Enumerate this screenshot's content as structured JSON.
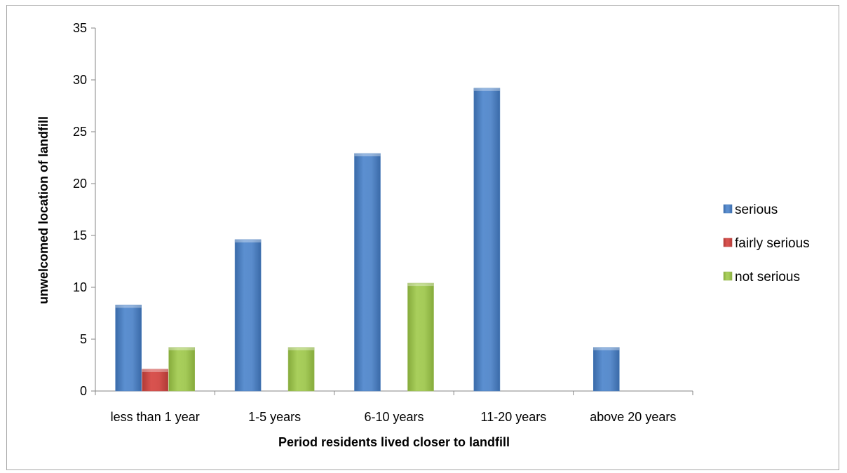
{
  "chart_data": {
    "type": "bar",
    "title": "",
    "xlabel": "Period residents lived closer to landfill",
    "ylabel": "unwelcomed location of landfill",
    "categories": [
      "less than 1 year",
      "1-5 years",
      "6-10 years",
      "11-20 years",
      "above 20 years"
    ],
    "ylim": [
      0,
      35
    ],
    "yticks": [
      "0",
      "5",
      "10",
      "15",
      "20",
      "25",
      "30",
      "35"
    ],
    "grid": false,
    "legend_position": "right",
    "series": [
      {
        "name": "serious",
        "color": "#4f81bd",
        "values": [
          8.3,
          14.6,
          22.9,
          29.2,
          4.2
        ]
      },
      {
        "name": "fairly serious",
        "color": "#c0504d",
        "values": [
          2.1,
          0,
          0,
          0,
          0
        ]
      },
      {
        "name": "not serious",
        "color": "#9bbb59",
        "values": [
          4.2,
          4.2,
          10.4,
          0,
          0
        ]
      }
    ]
  }
}
